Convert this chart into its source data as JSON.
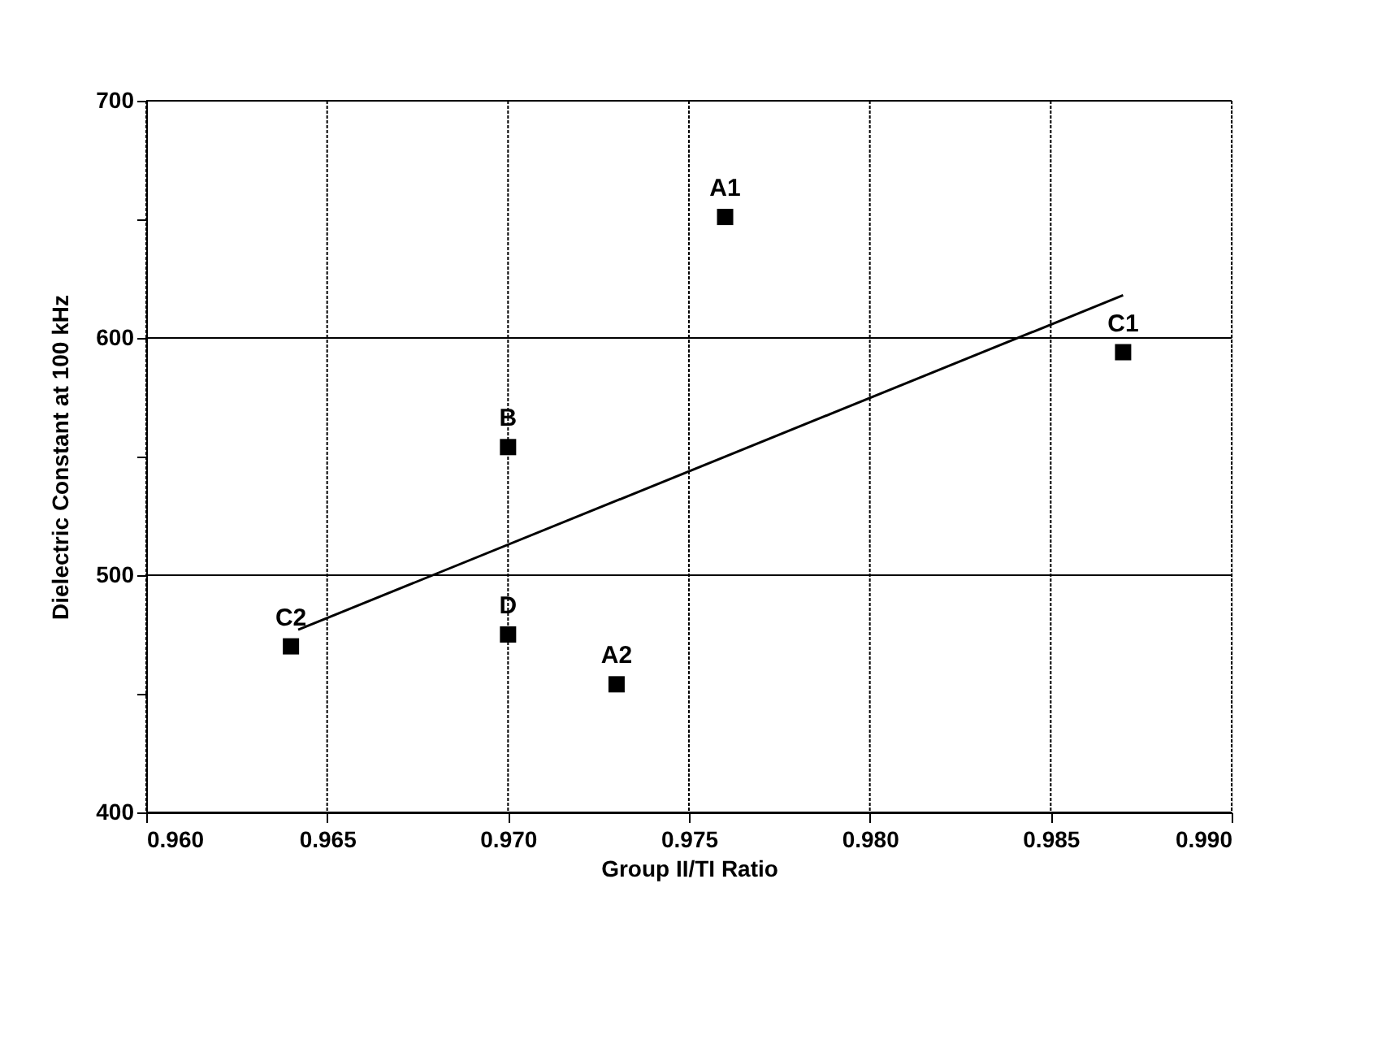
{
  "chart_data": {
    "type": "scatter",
    "xlabel": "Group II/TI Ratio",
    "ylabel": "Dielectric Constant at 100 kHz",
    "xlim": [
      0.96,
      0.99
    ],
    "xticks": [
      {
        "value": 0.96,
        "label": "0.960"
      },
      {
        "value": 0.965,
        "label": "0.965"
      },
      {
        "value": 0.97,
        "label": "0.970"
      },
      {
        "value": 0.975,
        "label": "0.975"
      },
      {
        "value": 0.98,
        "label": "0.980"
      },
      {
        "value": 0.985,
        "label": "0.985"
      },
      {
        "value": 0.99,
        "label": "0.990"
      }
    ],
    "ylim": [
      400,
      700
    ],
    "yticks": [
      400,
      {
        "value": 450,
        "label": null
      },
      500,
      {
        "value": 550,
        "label": null
      },
      600,
      {
        "value": 650,
        "label": null
      },
      700
    ],
    "grid": true,
    "series": [
      {
        "color": "#000000",
        "marker": "square",
        "x": [
          0.976,
          0.97,
          0.97,
          0.964,
          0.973,
          0.987
        ],
        "values": [
          651,
          554,
          475,
          470,
          454,
          594
        ]
      },
      {
        "type": "line",
        "marker": "none",
        "color": "#000000",
        "x": [
          0.9642,
          0.987
        ],
        "values": [
          477,
          618
        ]
      }
    ],
    "annotations": [
      {
        "text": "A1",
        "x": 0.976,
        "y": 651
      },
      {
        "text": "B",
        "x": 0.97,
        "y": 554
      },
      {
        "text": "D",
        "x": 0.97,
        "y": 475
      },
      {
        "text": "C2",
        "x": 0.964,
        "y": 470
      },
      {
        "text": "A2",
        "x": 0.973,
        "y": 454
      },
      {
        "text": "C1",
        "x": 0.987,
        "y": 594
      }
    ]
  }
}
